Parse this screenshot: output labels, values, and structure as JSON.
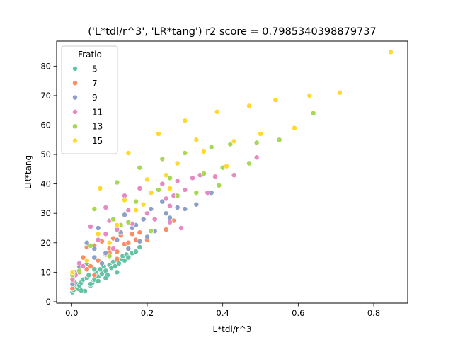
{
  "chart_data": {
    "type": "scatter",
    "title": "('L*tdl/r^3', 'LR*tang') r2 score = 0.7985340398879737",
    "xlabel": "L*tdl/r^3",
    "ylabel": "LR*tang",
    "xlim": [
      -0.04,
      0.89
    ],
    "ylim": [
      -0.5,
      88.5
    ],
    "xticks": [
      "0.0",
      "0.2",
      "0.4",
      "0.6",
      "0.8"
    ],
    "xtick_values": [
      0.0,
      0.2,
      0.4,
      0.6,
      0.8
    ],
    "yticks": [
      "0",
      "10",
      "20",
      "30",
      "40",
      "50",
      "60",
      "70",
      "80"
    ],
    "ytick_values": [
      0,
      10,
      20,
      30,
      40,
      50,
      60,
      70,
      80
    ],
    "grid": false,
    "legend": {
      "title": "Fratio",
      "position": "top-left"
    },
    "series": [
      {
        "name": "5",
        "color": "#66c2a5",
        "points": [
          [
            0.002,
            3.2
          ],
          [
            0.005,
            4.0
          ],
          [
            0.008,
            5.0
          ],
          [
            0.012,
            6.0
          ],
          [
            0.018,
            4.3
          ],
          [
            0.02,
            5.5
          ],
          [
            0.025,
            6.5
          ],
          [
            0.03,
            7.5
          ],
          [
            0.035,
            3.6
          ],
          [
            0.04,
            8.0
          ],
          [
            0.045,
            9.0
          ],
          [
            0.05,
            5.5
          ],
          [
            0.055,
            6.5
          ],
          [
            0.06,
            7.5
          ],
          [
            0.065,
            10.0
          ],
          [
            0.07,
            8.5
          ],
          [
            0.075,
            11.0
          ],
          [
            0.08,
            9.5
          ],
          [
            0.085,
            12.0
          ],
          [
            0.09,
            10.5
          ],
          [
            0.095,
            9.0
          ],
          [
            0.1,
            12.5
          ],
          [
            0.105,
            11.5
          ],
          [
            0.11,
            13.5
          ],
          [
            0.115,
            12.0
          ],
          [
            0.12,
            14.0
          ],
          [
            0.125,
            13.0
          ],
          [
            0.13,
            14.5
          ],
          [
            0.135,
            15.5
          ],
          [
            0.14,
            14.0
          ],
          [
            0.145,
            16.0
          ],
          [
            0.15,
            15.0
          ],
          [
            0.16,
            16.5
          ],
          [
            0.17,
            17.0
          ],
          [
            0.18,
            18.5
          ],
          [
            0.04,
            12.8
          ],
          [
            0.05,
            6.0
          ],
          [
            0.06,
            11.0
          ],
          [
            0.07,
            7.0
          ],
          [
            0.09,
            8.0
          ],
          [
            0.1,
            15.5
          ],
          [
            0.12,
            10.0
          ],
          [
            0.025,
            3.8
          ]
        ]
      },
      {
        "name": "7",
        "color": "#fc8d62",
        "points": [
          [
            0.002,
            4.5
          ],
          [
            0.005,
            7.0
          ],
          [
            0.01,
            9.5
          ],
          [
            0.02,
            10.0
          ],
          [
            0.03,
            15.0
          ],
          [
            0.04,
            18.5
          ],
          [
            0.05,
            12.0
          ],
          [
            0.06,
            19.0
          ],
          [
            0.07,
            14.0
          ],
          [
            0.08,
            20.5
          ],
          [
            0.09,
            16.0
          ],
          [
            0.1,
            18.0
          ],
          [
            0.11,
            21.5
          ],
          [
            0.12,
            17.0
          ],
          [
            0.13,
            22.5
          ],
          [
            0.14,
            19.5
          ],
          [
            0.15,
            20.0
          ],
          [
            0.16,
            23.0
          ],
          [
            0.17,
            21.0
          ],
          [
            0.18,
            23.5
          ],
          [
            0.2,
            21.0
          ],
          [
            0.21,
            24.0
          ],
          [
            0.25,
            24.5
          ],
          [
            0.27,
            27.5
          ],
          [
            0.04,
            11.0
          ],
          [
            0.06,
            9.0
          ],
          [
            0.08,
            13.0
          ],
          [
            0.1,
            16.5
          ],
          [
            0.12,
            14.5
          ]
        ]
      },
      {
        "name": "9",
        "color": "#8da0cb",
        "points": [
          [
            0.002,
            6.0
          ],
          [
            0.01,
            10.0
          ],
          [
            0.02,
            12.0
          ],
          [
            0.04,
            20.0
          ],
          [
            0.06,
            18.0
          ],
          [
            0.07,
            25.0
          ],
          [
            0.08,
            13.0
          ],
          [
            0.1,
            20.0
          ],
          [
            0.11,
            28.0
          ],
          [
            0.12,
            21.0
          ],
          [
            0.13,
            23.5
          ],
          [
            0.14,
            29.5
          ],
          [
            0.15,
            18.0
          ],
          [
            0.16,
            25.0
          ],
          [
            0.17,
            26.0
          ],
          [
            0.18,
            20.5
          ],
          [
            0.19,
            28.0
          ],
          [
            0.2,
            22.0
          ],
          [
            0.21,
            31.5
          ],
          [
            0.22,
            24.0
          ],
          [
            0.24,
            34.0
          ],
          [
            0.25,
            30.0
          ],
          [
            0.26,
            28.5
          ],
          [
            0.28,
            32.0
          ],
          [
            0.3,
            31.5
          ],
          [
            0.33,
            33.0
          ],
          [
            0.37,
            37.0
          ],
          [
            0.06,
            15.0
          ],
          [
            0.09,
            16.5
          ]
        ]
      },
      {
        "name": "11",
        "color": "#e78ac3",
        "points": [
          [
            0.002,
            7.5
          ],
          [
            0.01,
            9.0
          ],
          [
            0.02,
            13.0
          ],
          [
            0.03,
            12.0
          ],
          [
            0.05,
            25.5
          ],
          [
            0.07,
            21.0
          ],
          [
            0.09,
            23.0
          ],
          [
            0.1,
            27.5
          ],
          [
            0.12,
            24.5
          ],
          [
            0.14,
            36.0
          ],
          [
            0.15,
            31.0
          ],
          [
            0.16,
            26.5
          ],
          [
            0.18,
            38.5
          ],
          [
            0.19,
            33.0
          ],
          [
            0.2,
            30.0
          ],
          [
            0.22,
            28.0
          ],
          [
            0.24,
            40.0
          ],
          [
            0.25,
            35.0
          ],
          [
            0.26,
            32.5
          ],
          [
            0.27,
            36.0
          ],
          [
            0.28,
            41.0
          ],
          [
            0.3,
            38.0
          ],
          [
            0.32,
            42.0
          ],
          [
            0.34,
            43.0
          ],
          [
            0.38,
            42.5
          ],
          [
            0.4,
            45.5
          ],
          [
            0.43,
            43.0
          ],
          [
            0.49,
            49.0
          ],
          [
            0.26,
            27.0
          ],
          [
            0.29,
            25.0
          ],
          [
            0.36,
            37.0
          ],
          [
            0.11,
            18.0
          ],
          [
            0.09,
            32.0
          ]
        ]
      },
      {
        "name": "13",
        "color": "#a6d854",
        "points": [
          [
            0.002,
            9.0
          ],
          [
            0.02,
            10.5
          ],
          [
            0.05,
            19.0
          ],
          [
            0.06,
            31.5
          ],
          [
            0.1,
            15.5
          ],
          [
            0.12,
            40.5
          ],
          [
            0.13,
            26.0
          ],
          [
            0.15,
            27.0
          ],
          [
            0.17,
            34.0
          ],
          [
            0.18,
            45.5
          ],
          [
            0.21,
            24.0
          ],
          [
            0.23,
            38.0
          ],
          [
            0.24,
            48.5
          ],
          [
            0.26,
            42.0
          ],
          [
            0.28,
            36.0
          ],
          [
            0.3,
            50.5
          ],
          [
            0.33,
            37.0
          ],
          [
            0.35,
            43.5
          ],
          [
            0.37,
            52.5
          ],
          [
            0.39,
            39.5
          ],
          [
            0.4,
            45.5
          ],
          [
            0.42,
            53.5
          ],
          [
            0.47,
            47.0
          ],
          [
            0.49,
            54.0
          ],
          [
            0.55,
            55.0
          ],
          [
            0.64,
            64.0
          ],
          [
            0.11,
            28.0
          ]
        ]
      },
      {
        "name": "15",
        "color": "#ffd92f",
        "points": [
          [
            0.002,
            10.0
          ],
          [
            0.04,
            14.0
          ],
          [
            0.07,
            23.0
          ],
          [
            0.075,
            38.5
          ],
          [
            0.1,
            20.0
          ],
          [
            0.12,
            26.0
          ],
          [
            0.14,
            34.5
          ],
          [
            0.15,
            50.5
          ],
          [
            0.17,
            31.0
          ],
          [
            0.19,
            33.0
          ],
          [
            0.2,
            41.5
          ],
          [
            0.21,
            37.0
          ],
          [
            0.23,
            57.0
          ],
          [
            0.25,
            43.0
          ],
          [
            0.26,
            38.5
          ],
          [
            0.28,
            47.0
          ],
          [
            0.3,
            61.5
          ],
          [
            0.33,
            55.0
          ],
          [
            0.35,
            51.0
          ],
          [
            0.385,
            64.5
          ],
          [
            0.41,
            46.0
          ],
          [
            0.43,
            54.5
          ],
          [
            0.47,
            66.5
          ],
          [
            0.5,
            57.0
          ],
          [
            0.54,
            68.5
          ],
          [
            0.59,
            59.0
          ],
          [
            0.63,
            70.0
          ],
          [
            0.71,
            71.0
          ],
          [
            0.845,
            84.8
          ]
        ]
      }
    ]
  }
}
